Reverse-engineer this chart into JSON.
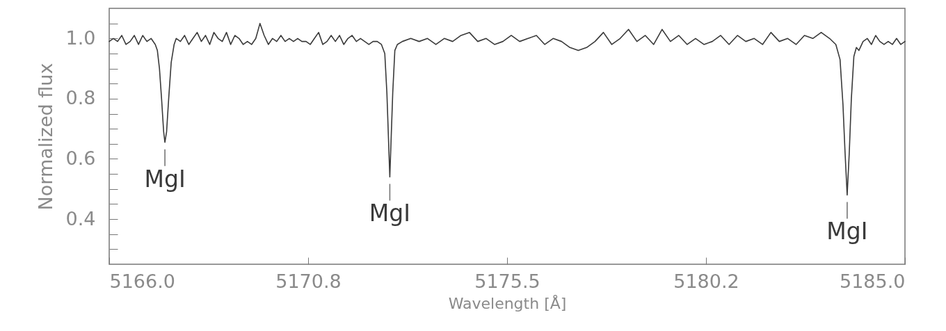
{
  "chart_data": {
    "type": "line",
    "xlabel": "Wavelength [Å]",
    "ylabel": "Normalized flux",
    "xlim": [
      5166.0,
      5185.0
    ],
    "xticks": [
      {
        "value": 5166.0,
        "label": "5166.0"
      },
      {
        "value": 5170.75,
        "label": "5170.8"
      },
      {
        "value": 5175.5,
        "label": "5175.5"
      },
      {
        "value": 5180.25,
        "label": "5180.2"
      },
      {
        "value": 5185.0,
        "label": "5185.0"
      }
    ],
    "ylim": [
      0.25,
      1.1
    ],
    "yticks": [
      {
        "value": 0.3,
        "label": null
      },
      {
        "value": 0.35,
        "label": null
      },
      {
        "value": 0.4,
        "label": "0.4"
      },
      {
        "value": 0.45,
        "label": null
      },
      {
        "value": 0.5,
        "label": null
      },
      {
        "value": 0.55,
        "label": null
      },
      {
        "value": 0.6,
        "label": "0.6"
      },
      {
        "value": 0.65,
        "label": null
      },
      {
        "value": 0.7,
        "label": null
      },
      {
        "value": 0.75,
        "label": null
      },
      {
        "value": 0.8,
        "label": "0.8"
      },
      {
        "value": 0.85,
        "label": null
      },
      {
        "value": 0.9,
        "label": null
      },
      {
        "value": 0.95,
        "label": null
      },
      {
        "value": 1.0,
        "label": "1.0"
      },
      {
        "value": 1.05,
        "label": null
      }
    ],
    "grid": false,
    "marker": "none",
    "line_style": "solid",
    "series": [
      {
        "color": "#3a3a3a",
        "x": [
          5166.0,
          5166.1,
          5166.2,
          5166.3,
          5166.4,
          5166.5,
          5166.6,
          5166.7,
          5166.8,
          5166.9,
          5167.0,
          5167.1,
          5167.15,
          5167.2,
          5167.25,
          5167.3,
          5167.33,
          5167.37,
          5167.42,
          5167.48,
          5167.55,
          5167.6,
          5167.7,
          5167.8,
          5167.9,
          5168.0,
          5168.1,
          5168.2,
          5168.3,
          5168.4,
          5168.5,
          5168.6,
          5168.7,
          5168.8,
          5168.9,
          5169.0,
          5169.1,
          5169.2,
          5169.3,
          5169.4,
          5169.5,
          5169.6,
          5169.7,
          5169.8,
          5169.9,
          5170.0,
          5170.1,
          5170.2,
          5170.3,
          5170.4,
          5170.5,
          5170.6,
          5170.7,
          5170.8,
          5170.9,
          5171.0,
          5171.1,
          5171.2,
          5171.3,
          5171.4,
          5171.5,
          5171.6,
          5171.7,
          5171.8,
          5171.9,
          5172.0,
          5172.1,
          5172.2,
          5172.3,
          5172.4,
          5172.5,
          5172.58,
          5172.63,
          5172.67,
          5172.7,
          5172.73,
          5172.77,
          5172.82,
          5172.88,
          5173.0,
          5173.2,
          5173.4,
          5173.6,
          5173.8,
          5174.0,
          5174.2,
          5174.4,
          5174.6,
          5174.8,
          5175.0,
          5175.2,
          5175.4,
          5175.6,
          5175.8,
          5176.0,
          5176.2,
          5176.4,
          5176.6,
          5176.8,
          5177.0,
          5177.2,
          5177.4,
          5177.6,
          5177.8,
          5178.0,
          5178.2,
          5178.4,
          5178.6,
          5178.8,
          5179.0,
          5179.2,
          5179.4,
          5179.6,
          5179.8,
          5180.0,
          5180.2,
          5180.4,
          5180.6,
          5180.8,
          5181.0,
          5181.2,
          5181.4,
          5181.6,
          5181.8,
          5182.0,
          5182.2,
          5182.4,
          5182.6,
          5182.8,
          5183.0,
          5183.2,
          5183.35,
          5183.45,
          5183.52,
          5183.57,
          5183.62,
          5183.67,
          5183.72,
          5183.78,
          5183.84,
          5183.9,
          5184.0,
          5184.1,
          5184.2,
          5184.3,
          5184.4,
          5184.5,
          5184.6,
          5184.7,
          5184.8,
          5184.9,
          5185.0
        ],
        "values": [
          0.99,
          1.0,
          0.99,
          1.01,
          0.98,
          0.99,
          1.01,
          0.98,
          1.01,
          0.99,
          1.0,
          0.98,
          0.96,
          0.9,
          0.8,
          0.69,
          0.655,
          0.69,
          0.8,
          0.92,
          0.98,
          1.0,
          0.99,
          1.01,
          0.98,
          1.0,
          1.02,
          0.99,
          1.01,
          0.98,
          1.02,
          1.0,
          0.99,
          1.02,
          0.98,
          1.01,
          1.0,
          0.98,
          0.99,
          0.98,
          1.0,
          1.05,
          1.01,
          0.98,
          1.0,
          0.99,
          1.01,
          0.99,
          1.0,
          0.99,
          1.0,
          0.99,
          0.99,
          0.98,
          1.0,
          1.02,
          0.98,
          0.99,
          1.01,
          0.99,
          1.01,
          0.98,
          1.0,
          1.01,
          0.99,
          1.0,
          0.99,
          0.98,
          0.99,
          0.99,
          0.98,
          0.95,
          0.82,
          0.66,
          0.54,
          0.66,
          0.82,
          0.96,
          0.98,
          0.99,
          1.0,
          0.99,
          1.0,
          0.98,
          1.0,
          0.99,
          1.01,
          1.02,
          0.99,
          1.0,
          0.98,
          0.99,
          1.01,
          0.99,
          1.0,
          1.01,
          0.98,
          1.0,
          0.99,
          0.97,
          0.96,
          0.97,
          0.99,
          1.02,
          0.98,
          1.0,
          1.03,
          0.99,
          1.01,
          0.98,
          1.03,
          0.99,
          1.01,
          0.98,
          1.0,
          0.98,
          0.99,
          1.01,
          0.98,
          1.01,
          0.99,
          1.0,
          0.98,
          1.02,
          0.99,
          1.0,
          0.98,
          1.01,
          1.0,
          1.02,
          1.0,
          0.98,
          0.93,
          0.78,
          0.62,
          0.48,
          0.62,
          0.8,
          0.94,
          0.97,
          0.96,
          0.99,
          1.0,
          0.98,
          1.01,
          0.99,
          0.98,
          0.99,
          0.98,
          1.0,
          0.98,
          0.99
        ]
      }
    ],
    "annotations": [
      {
        "text": "MgI",
        "x": 5167.33,
        "y": 0.655
      },
      {
        "text": "MgI",
        "x": 5172.7,
        "y": 0.54
      },
      {
        "text": "MgI",
        "x": 5183.62,
        "y": 0.48
      }
    ]
  }
}
